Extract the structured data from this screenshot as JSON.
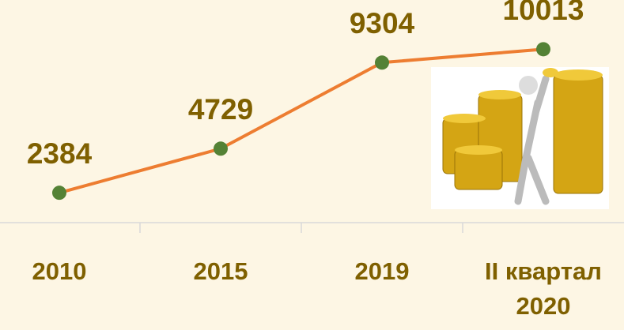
{
  "chart_data": {
    "type": "line",
    "categories": [
      "2010",
      "2015",
      "2019",
      "II квартал 2020"
    ],
    "series": [
      {
        "color": "#ed7d31",
        "marker_color": "#548235",
        "values": [
          2384,
          4729,
          9304,
          10013
        ]
      }
    ],
    "ylim": [
      0,
      12000
    ]
  }
}
